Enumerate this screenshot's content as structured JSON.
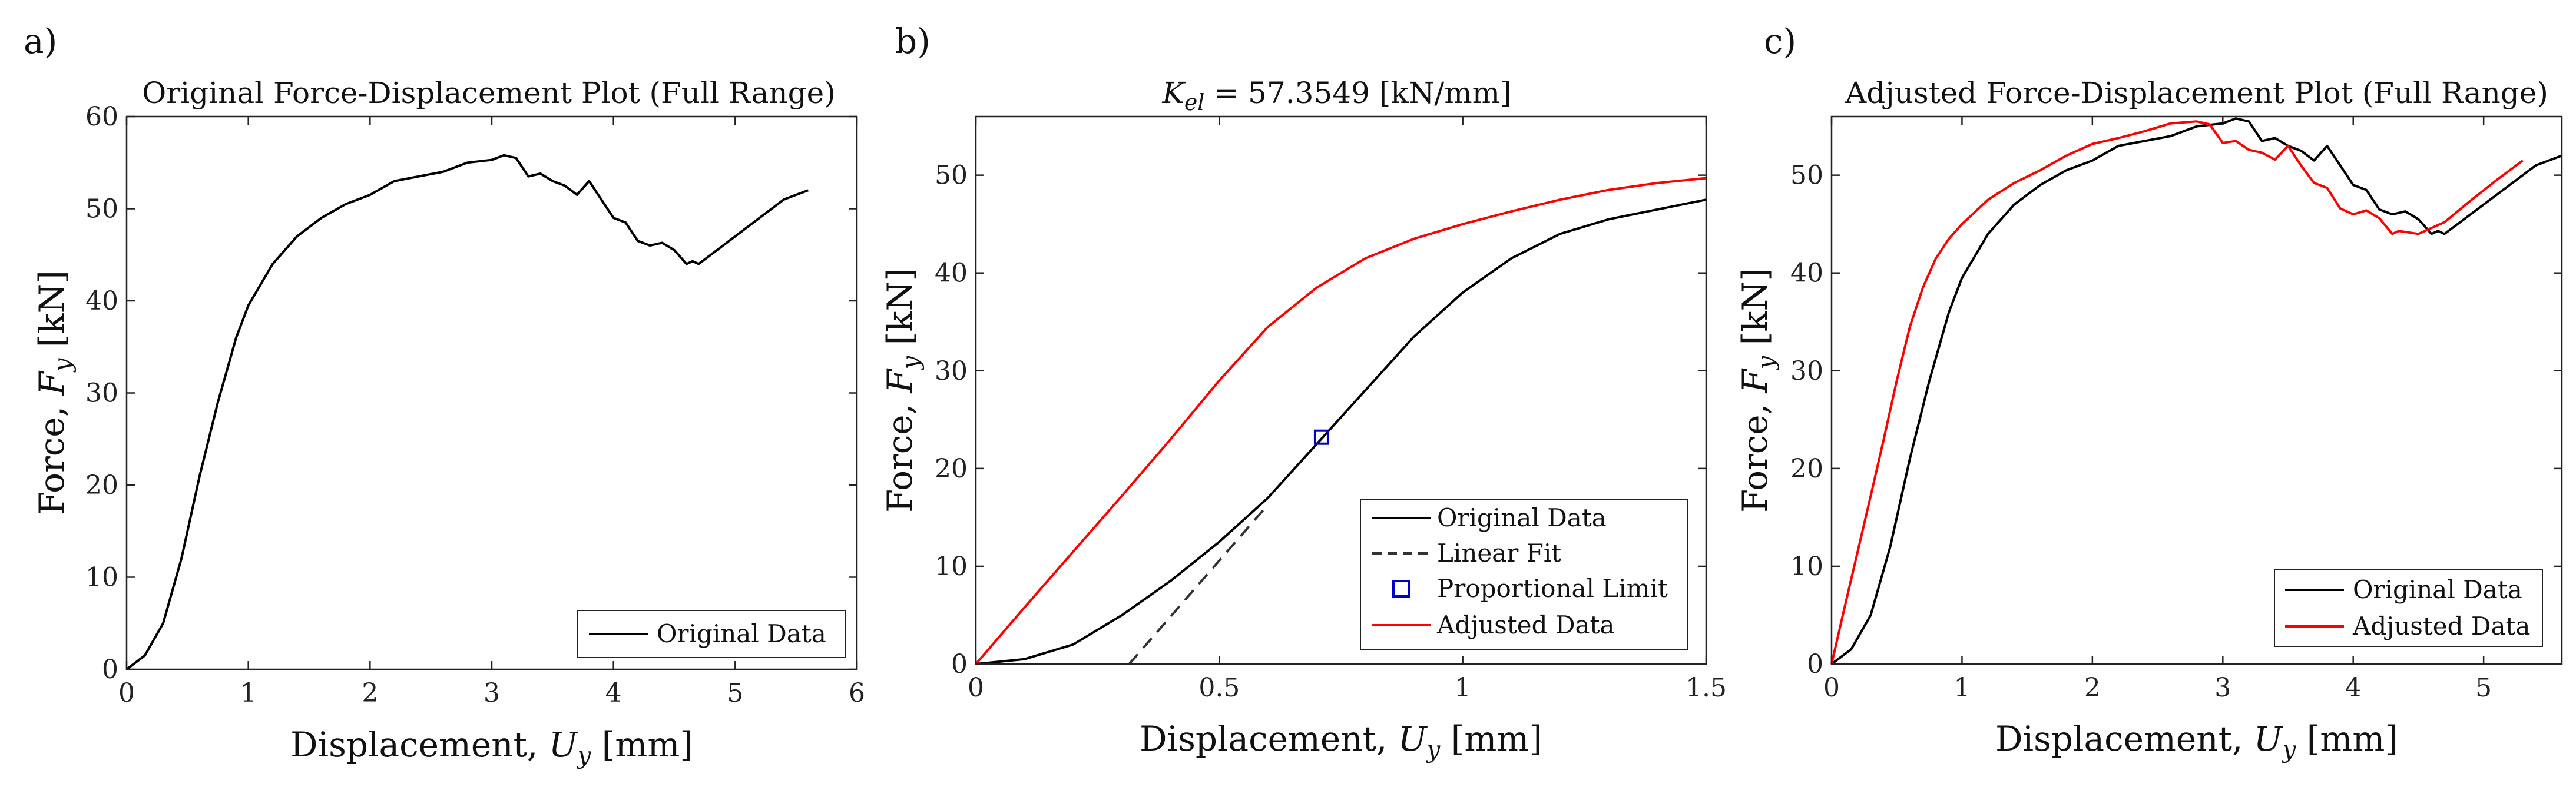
{
  "chart_data": [
    {
      "panel": "a)",
      "type": "line",
      "title": "Original Force-Displacement Plot (Full Range)",
      "xlabel": "Displacement, U_y [mm]",
      "ylabel": "Force, F_y [kN]",
      "xlim": [
        0,
        6
      ],
      "ylim": [
        0,
        60
      ],
      "xticks": [
        0,
        1,
        2,
        3,
        4,
        5,
        6
      ],
      "yticks": [
        0,
        10,
        20,
        30,
        40,
        50,
        60
      ],
      "legend": "bottom-right",
      "series": [
        {
          "name": "Original Data",
          "color": "#000000",
          "dash": "solid",
          "x": [
            0,
            0.15,
            0.3,
            0.45,
            0.6,
            0.75,
            0.9,
            1.0,
            1.2,
            1.4,
            1.6,
            1.8,
            2.0,
            2.2,
            2.4,
            2.6,
            2.8,
            3.0,
            3.1,
            3.2,
            3.3,
            3.4,
            3.5,
            3.6,
            3.7,
            3.8,
            3.9,
            4.0,
            4.1,
            4.2,
            4.3,
            4.4,
            4.5,
            4.6,
            4.65,
            4.7,
            4.8,
            5.0,
            5.2,
            5.4,
            5.6
          ],
          "y": [
            0,
            1.5,
            5,
            12,
            21,
            29,
            36,
            39.5,
            44,
            47,
            49,
            50.5,
            51.5,
            53,
            53.5,
            54,
            55,
            55.3,
            55.8,
            55.5,
            53.5,
            53.8,
            53,
            52.5,
            51.5,
            53,
            51,
            49,
            48.5,
            46.5,
            46,
            46.3,
            45.5,
            44,
            44.3,
            44,
            45,
            47,
            49,
            51,
            52
          ]
        }
      ]
    },
    {
      "panel": "b)",
      "type": "line",
      "title": "K_el = 57.3549 [kN/mm]",
      "xlabel": "Displacement, U_y [mm]",
      "ylabel": "Force, F_y [kN]",
      "xlim": [
        0,
        1.5
      ],
      "ylim": [
        0,
        56
      ],
      "xticks": [
        0,
        0.5,
        1,
        1.5
      ],
      "yticks": [
        0,
        10,
        20,
        30,
        40,
        50
      ],
      "legend": "bottom-right",
      "series": [
        {
          "name": "Original Data",
          "color": "#000000",
          "dash": "solid",
          "x": [
            0,
            0.1,
            0.2,
            0.3,
            0.4,
            0.5,
            0.6,
            0.7,
            0.8,
            0.9,
            1.0,
            1.1,
            1.2,
            1.3,
            1.4,
            1.5
          ],
          "y": [
            0,
            0.5,
            2,
            5,
            8.5,
            12.5,
            17,
            22.5,
            28,
            33.5,
            38,
            41.5,
            44,
            45.5,
            46.5,
            47.5
          ]
        },
        {
          "name": "Linear Fit",
          "color": "#333333",
          "dash": "dashed",
          "x": [
            0.315,
            0.6
          ],
          "y": [
            0,
            16.3
          ]
        },
        {
          "name": "Proportional Limit",
          "color": "#0000cc",
          "marker": "square",
          "x": [
            0.71
          ],
          "y": [
            23.2
          ]
        },
        {
          "name": "Adjusted Data",
          "color": "#ff0000",
          "dash": "solid",
          "x": [
            0,
            0.1,
            0.2,
            0.3,
            0.4,
            0.5,
            0.6,
            0.7,
            0.8,
            0.9,
            1.0,
            1.1,
            1.2,
            1.3,
            1.4,
            1.5
          ],
          "y": [
            0,
            5.8,
            11.5,
            17.2,
            23,
            29,
            34.5,
            38.5,
            41.5,
            43.5,
            45,
            46.3,
            47.5,
            48.5,
            49.2,
            49.7
          ]
        }
      ]
    },
    {
      "panel": "c)",
      "type": "line",
      "title": "Adjusted Force-Displacement Plot (Full Range)",
      "xlabel": "Displacement, U_y [mm]",
      "ylabel": "Force, F_y [kN]",
      "xlim": [
        0,
        5.6
      ],
      "ylim": [
        0,
        56
      ],
      "xticks": [
        0,
        1,
        2,
        3,
        4,
        5
      ],
      "yticks": [
        0,
        10,
        20,
        30,
        40,
        50
      ],
      "legend": "bottom-right",
      "series": [
        {
          "name": "Original Data",
          "color": "#000000",
          "dash": "solid",
          "x": [
            0,
            0.15,
            0.3,
            0.45,
            0.6,
            0.75,
            0.9,
            1.0,
            1.2,
            1.4,
            1.6,
            1.8,
            2.0,
            2.2,
            2.4,
            2.6,
            2.8,
            3.0,
            3.1,
            3.2,
            3.3,
            3.4,
            3.5,
            3.6,
            3.7,
            3.8,
            3.9,
            4.0,
            4.1,
            4.2,
            4.3,
            4.4,
            4.5,
            4.6,
            4.65,
            4.7,
            4.8,
            5.0,
            5.2,
            5.4,
            5.6
          ],
          "y": [
            0,
            1.5,
            5,
            12,
            21,
            29,
            36,
            39.5,
            44,
            47,
            49,
            50.5,
            51.5,
            53,
            53.5,
            54,
            55,
            55.3,
            55.8,
            55.5,
            53.5,
            53.8,
            53,
            52.5,
            51.5,
            53,
            51,
            49,
            48.5,
            46.5,
            46,
            46.3,
            45.5,
            44,
            44.3,
            44,
            45,
            47,
            49,
            51,
            52
          ]
        },
        {
          "name": "Adjusted Data",
          "color": "#ff0000",
          "dash": "solid",
          "x": [
            0,
            0.1,
            0.2,
            0.3,
            0.4,
            0.5,
            0.6,
            0.7,
            0.8,
            0.9,
            1.0,
            1.2,
            1.4,
            1.6,
            1.8,
            2.0,
            2.2,
            2.4,
            2.6,
            2.8,
            2.9,
            3.0,
            3.1,
            3.2,
            3.3,
            3.4,
            3.5,
            3.6,
            3.7,
            3.8,
            3.9,
            4.0,
            4.1,
            4.2,
            4.3,
            4.35,
            4.5,
            4.7,
            4.9,
            5.1,
            5.3
          ],
          "y": [
            0,
            5.8,
            11.5,
            17.2,
            23,
            29,
            34.5,
            38.5,
            41.5,
            43.5,
            45,
            47.5,
            49.2,
            50.5,
            52,
            53.2,
            53.8,
            54.5,
            55.3,
            55.5,
            55.2,
            53.3,
            53.5,
            52.6,
            52.3,
            51.6,
            53,
            51,
            49.2,
            48.7,
            46.6,
            46,
            46.4,
            45.6,
            44,
            44.3,
            44,
            45.2,
            47.4,
            49.5,
            51.5
          ]
        }
      ]
    }
  ]
}
